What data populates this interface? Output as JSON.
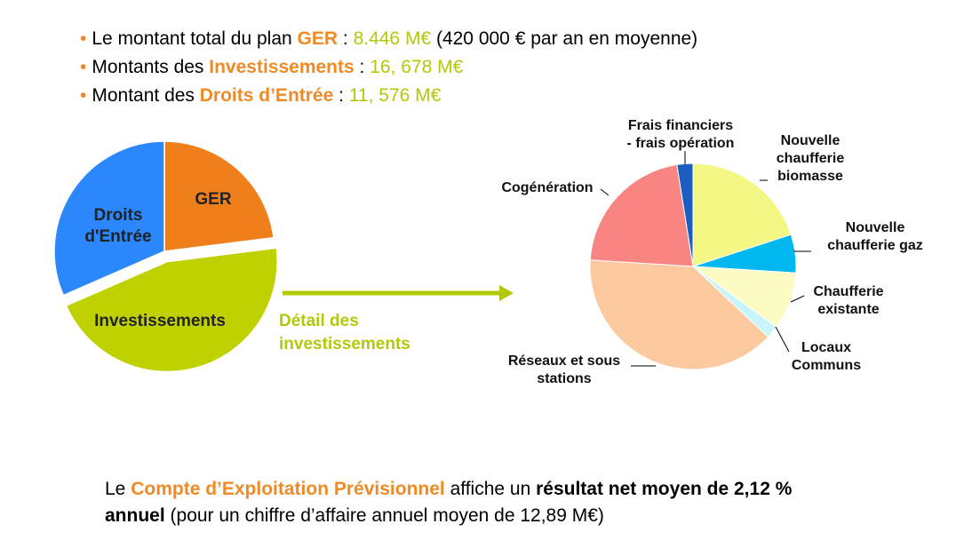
{
  "bullets": [
    {
      "prefix": "Le montant total du plan ",
      "keyword": "GER",
      "sep": " : ",
      "value": "8.446 M€",
      "suffix": " (420 000 € par an en moyenne)"
    },
    {
      "prefix": "Montants des ",
      "keyword": "Investissements",
      "sep": " : ",
      "value": "16, 678 M€",
      "suffix": ""
    },
    {
      "prefix": "Montant des ",
      "keyword": "Droits d’Entrée",
      "sep": " : ",
      "value": "11, 576  M€",
      "suffix": ""
    }
  ],
  "arrow_label": [
    "Détail des",
    "investissements"
  ],
  "colors": {
    "accent_orange": "#f08a24",
    "accent_lime": "#b4c80a"
  },
  "chart_data": [
    {
      "type": "pie",
      "slices": [
        {
          "label": "GER",
          "value": 8.446,
          "color": "#ef7f1a",
          "label_color": "#222222"
        },
        {
          "label": "Investissements",
          "value": 16.678,
          "color": "#bfd200",
          "label_color": "#222222",
          "exploded": true
        },
        {
          "label": "Droits d'Entrée",
          "value": 11.576,
          "color": "#2a87fc",
          "label_color": "#222222"
        }
      ]
    },
    {
      "type": "pie",
      "slices": [
        {
          "label": "Nouvelle chaufferie biomasse",
          "value": 20,
          "color": "#f3f784"
        },
        {
          "label": "Nouvelle chaufferie gaz",
          "value": 6,
          "color": "#00b7ef"
        },
        {
          "label": "Chaufferie existante",
          "value": 9,
          "color": "#fdfbc4"
        },
        {
          "label": "Locaux Communs",
          "value": 2,
          "color": "#c8f4fc"
        },
        {
          "label": "Réseaux et sous stations",
          "value": 39,
          "color": "#fdcaa0"
        },
        {
          "label": "Cogénération",
          "value": 21.5,
          "color": "#f98583"
        },
        {
          "label": "Frais financiers - frais opération",
          "value": 2.5,
          "color": "#1b5dc0"
        }
      ],
      "label_lines": [
        [
          "Nouvelle",
          "chaufferie",
          "biomasse"
        ],
        [
          "Nouvelle",
          "chaufferie gaz"
        ],
        [
          "Chaufferie",
          "existante"
        ],
        [
          "Locaux",
          "Communs"
        ],
        [
          "Réseaux et sous",
          "stations"
        ],
        [
          "Cogénération"
        ],
        [
          "Frais financiers",
          "- frais opération"
        ]
      ]
    }
  ],
  "footer": {
    "line1_prefix": "Le ",
    "line1_keyword": "Compte d’Exploitation Prévisionnel",
    "line1_mid": " affiche un ",
    "line1_bold": "résultat net moyen de 2,12 %",
    "line2_bold": "annuel",
    "line2_rest": " (pour un chiffre d’affaire annuel moyen de 12,89 M€)"
  }
}
